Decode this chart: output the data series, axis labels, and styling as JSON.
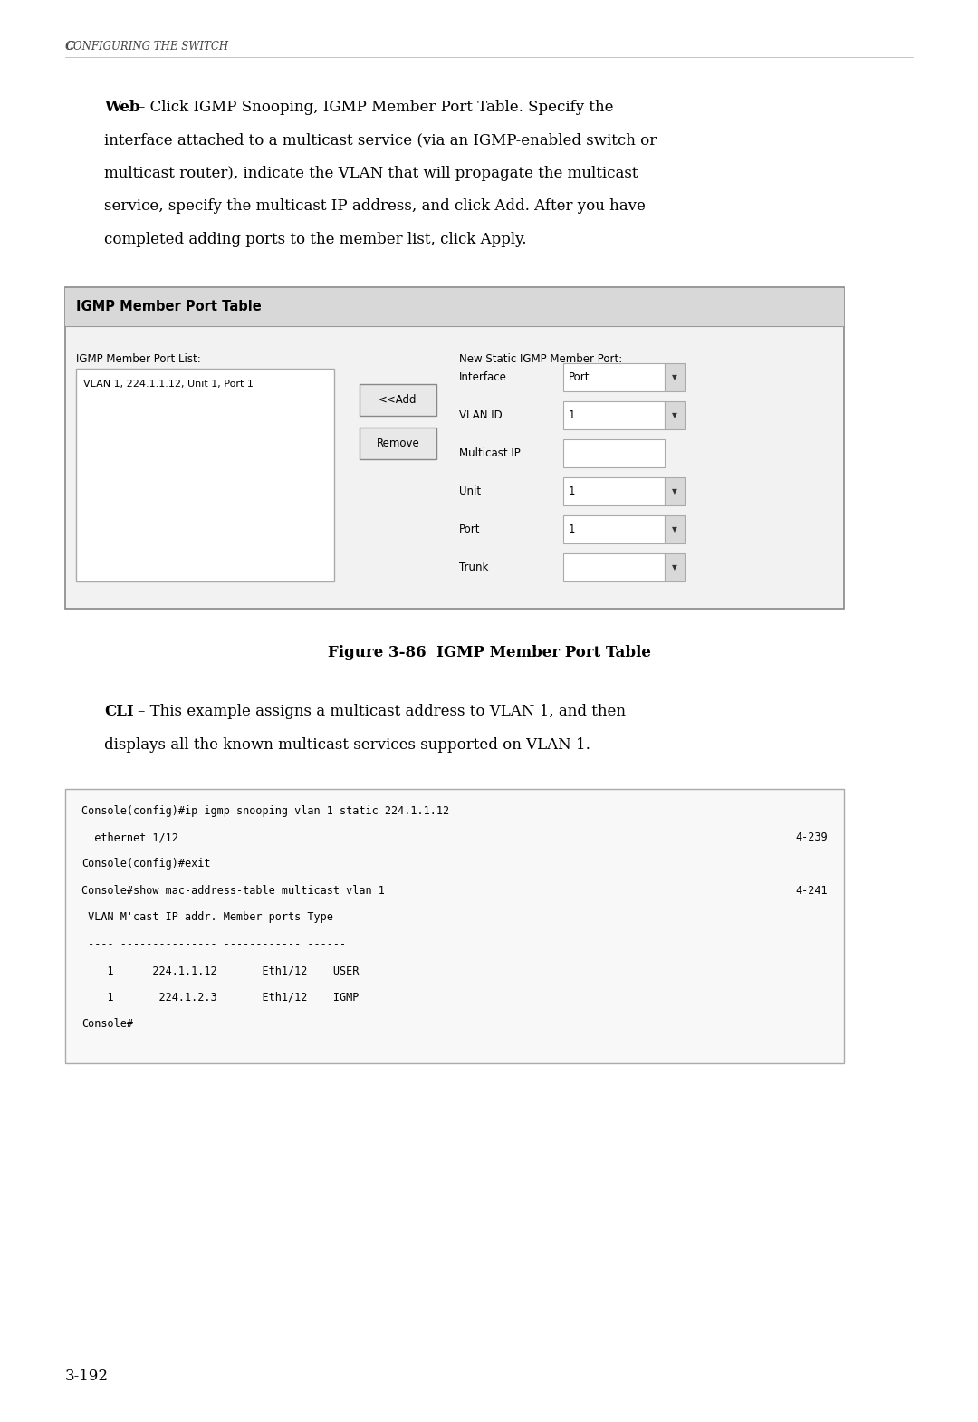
{
  "page_bg": "#ffffff",
  "header_text": "Configuring the Switch",
  "web_bold": "Web",
  "web_rest": " – Click IGMP Snooping, IGMP Member Port Table. Specify the interface attached to a multicast service (via an IGMP-enabled switch or multicast router), indicate the VLAN that will propagate the multicast service, specify the multicast IP address, and click Add. After you have completed adding ports to the member list, click Apply.",
  "figure_caption": "Figure 3-86  IGMP Member Port Table",
  "cli_bold": "CLI",
  "cli_rest": " – This example assigns a multicast address to VLAN 1, and then displays all the known multicast services supported on VLAN 1.",
  "code_left_lines": [
    "Console(config)#ip igmp snooping vlan 1 static 224.1.1.12",
    "  ethernet 1/12",
    "Console(config)#exit",
    "Console#show mac-address-table multicast vlan 1",
    " VLAN M'cast IP addr. Member ports Type",
    " ---- --------------- ------------ ------",
    "    1      224.1.1.12       Eth1/12    USER",
    "    1       224.1.2.3       Eth1/12    IGMP",
    "Console#"
  ],
  "code_right_lines": [
    "",
    "4-239",
    "",
    "4-241",
    "",
    "",
    "",
    "",
    ""
  ],
  "page_number": "3-192",
  "gui_title": "IGMP Member Port Table",
  "gui_member_list_label": "IGMP Member Port List:",
  "gui_member_list_entry": "VLAN 1, 224.1.1.12, Unit 1, Port 1",
  "gui_new_static_label": "New Static IGMP Member Port:",
  "gui_add_button": "<<Add",
  "gui_remove_button": "Remove",
  "gui_fields": [
    {
      "label": "Interface",
      "value": "Port",
      "has_dropdown": true
    },
    {
      "label": "VLAN ID",
      "value": "1",
      "has_dropdown": true
    },
    {
      "label": "Multicast IP",
      "value": "",
      "has_dropdown": false
    },
    {
      "label": "Unit",
      "value": "1",
      "has_dropdown": true
    },
    {
      "label": "Port",
      "value": "1",
      "has_dropdown": true
    },
    {
      "label": "Trunk",
      "value": "",
      "has_dropdown": true
    }
  ]
}
